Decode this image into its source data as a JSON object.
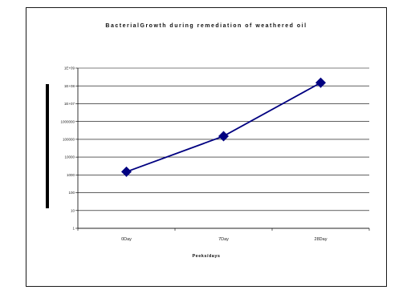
{
  "chart_data": {
    "type": "line",
    "title": "BacterialGrowth during remediation of weathered oil",
    "xlabel": "Peeks/days",
    "ylabel": "",
    "yscale": "log",
    "ylim": [
      1,
      1000000000
    ],
    "yticks": [
      1,
      10,
      100,
      1000,
      10000,
      100000,
      1000000,
      10000000,
      100000000,
      1000000000
    ],
    "ytick_labels": [
      "1",
      "10",
      "100",
      "1000",
      "10000",
      "100000",
      "1000000",
      "1E+07",
      "1E+08",
      "1E+09"
    ],
    "categories": [
      "0Day",
      "7Day",
      "28Day"
    ],
    "series": [
      {
        "values": [
          1500,
          150000,
          150000000
        ],
        "color": "#000080"
      }
    ],
    "grid": true,
    "legend": "none"
  }
}
